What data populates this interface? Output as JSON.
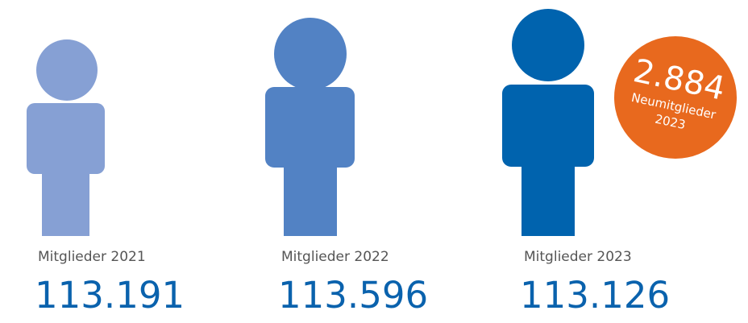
{
  "items": [
    {
      "label": "Mitglieder 2021",
      "value": "113.191"
    },
    {
      "label": "Mitglieder 2022",
      "value": "113.596"
    },
    {
      "label": "Mitglieder 2023",
      "value": "113.126"
    }
  ],
  "badge": {
    "value": "2.884",
    "label": "Neumitglieder",
    "year": "2023"
  }
}
